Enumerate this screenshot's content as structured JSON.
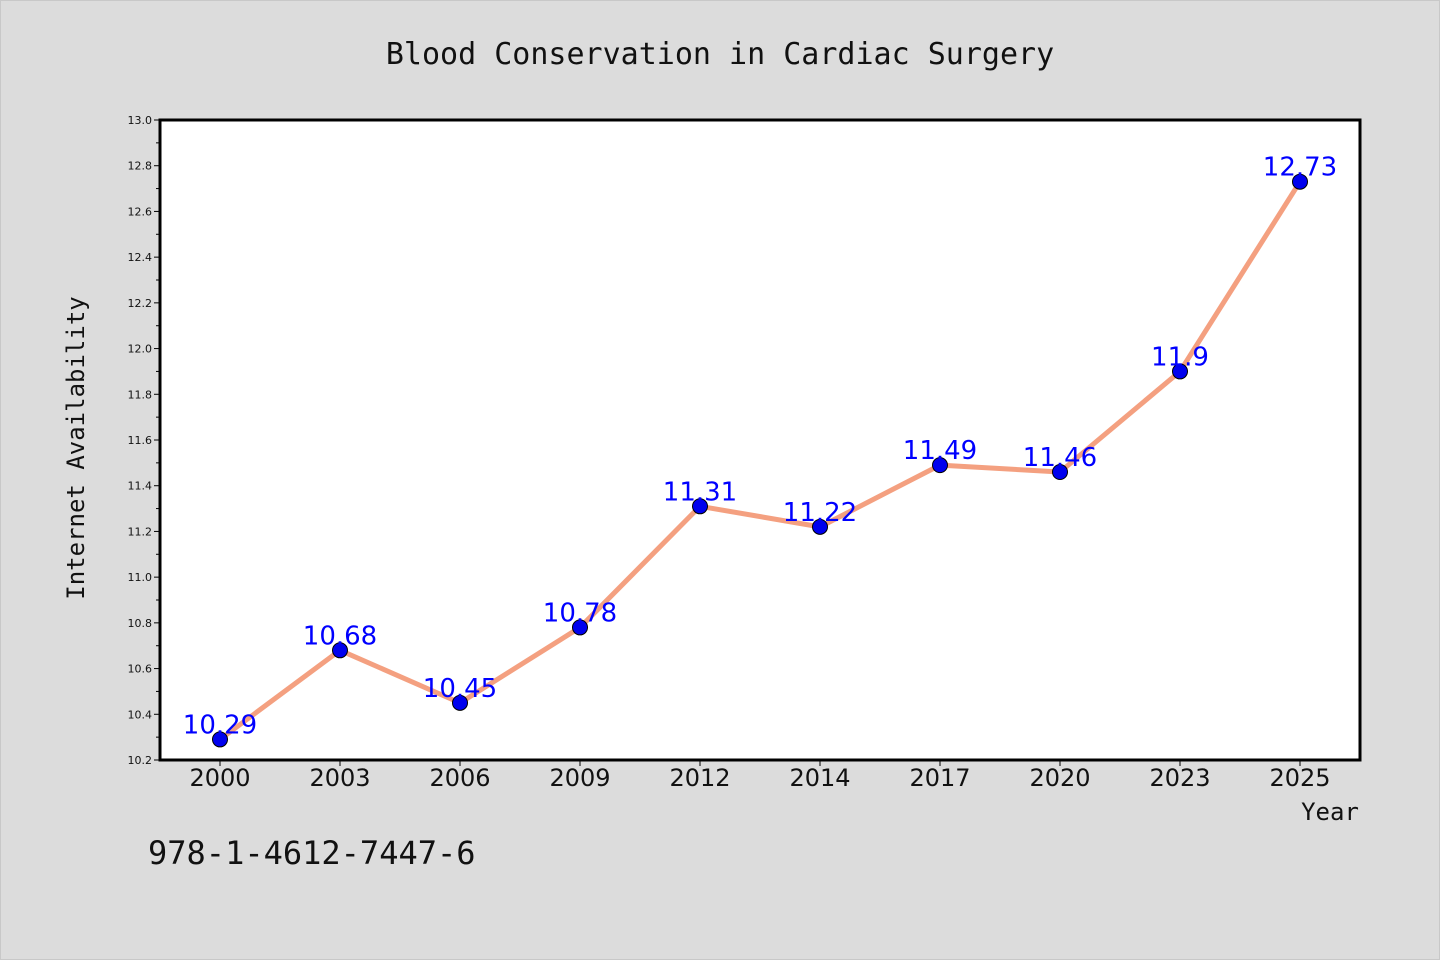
{
  "chart_data": {
    "type": "line",
    "title": "Blood Conservation in Cardiac Surgery",
    "xlabel": "Year",
    "ylabel": "Internet Availability",
    "categories": [
      "2000",
      "2003",
      "2006",
      "2009",
      "2012",
      "2014",
      "2017",
      "2020",
      "2023",
      "2025"
    ],
    "series": [
      {
        "values": [
          10.29,
          10.68,
          10.45,
          10.78,
          11.31,
          11.22,
          11.49,
          11.46,
          11.9,
          12.73
        ],
        "data_labels": [
          "10.29",
          "10.68",
          "10.45",
          "10.78",
          "11.31",
          "11.22",
          "11.49",
          "11.46",
          "11.9",
          "12.73"
        ],
        "line_color": "#f4a080",
        "marker_color": "#0000ee"
      }
    ],
    "ylim": [
      10.2,
      13.0
    ],
    "yticks": [
      "10.2",
      "10.4",
      "10.6",
      "10.8",
      "11.0",
      "11.2",
      "11.4",
      "11.6",
      "11.8",
      "12.0",
      "12.2",
      "12.4",
      "12.6",
      "12.8",
      "13.0"
    ],
    "grid": false,
    "legend": "none",
    "label_color": "#0000ff",
    "background_color": "#dcdcdc",
    "plot_background": "#ffffff"
  },
  "footer": {
    "isbn": "978-1-4612-7447-6"
  }
}
